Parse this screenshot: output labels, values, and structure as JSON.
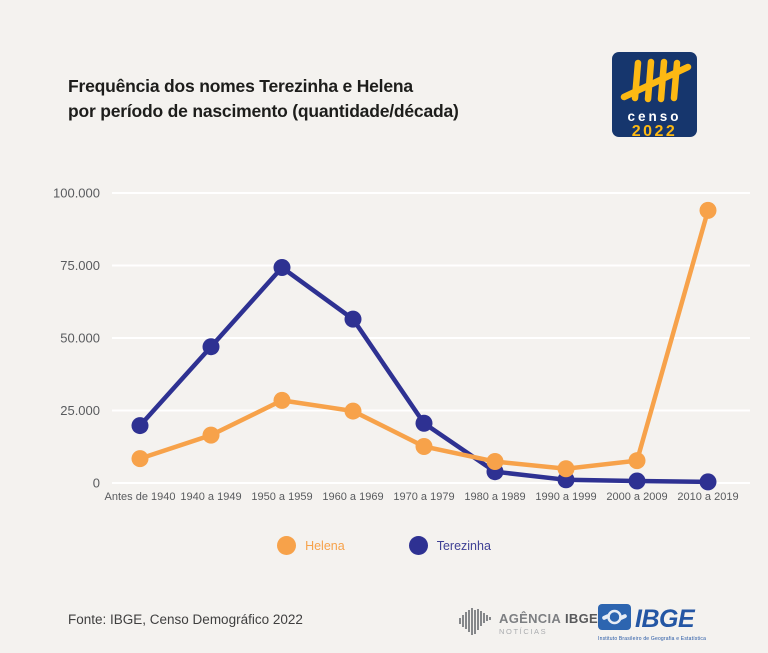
{
  "page": {
    "background": "#f4f2ef"
  },
  "header": {
    "title_line1": "Frequência dos nomes Terezinha e Helena",
    "title_line2": "por período de nascimento (quantidade/década)",
    "censo_logo": {
      "word": "censo",
      "year": "2022",
      "bg_color": "#16366d",
      "mark_color": "#fdb913"
    }
  },
  "chart_data": {
    "type": "line",
    "title": "Frequência dos nomes Terezinha e Helena por período de nascimento (quantidade/década)",
    "categories": [
      "Antes de 1940",
      "1940 a 1949",
      "1950 a 1959",
      "1960 a 1969",
      "1970 a 1979",
      "1980 a 1989",
      "1990 a 1999",
      "2000 a 2009",
      "2010 a 2019"
    ],
    "series": [
      {
        "name": "Terezinha",
        "color": "#2e3192",
        "values": [
          19800,
          47000,
          74300,
          56500,
          20600,
          3900,
          1100,
          700,
          400
        ]
      },
      {
        "name": "Helena",
        "color": "#f7a24a",
        "values": [
          8400,
          16500,
          28500,
          24800,
          12600,
          7400,
          4900,
          7700,
          94000
        ]
      }
    ],
    "ylim": [
      0,
      100000
    ],
    "yticks": [
      {
        "value": 100000,
        "label": "100.000"
      },
      {
        "value": 75000,
        "label": "75.000"
      },
      {
        "value": 50000,
        "label": "50.000"
      },
      {
        "value": 25000,
        "label": "25.000"
      },
      {
        "value": 0,
        "label": "0"
      }
    ],
    "grid": true,
    "gridline_color": "#ffffff",
    "tick_label_color": "#595b5e",
    "legend_position": "bottom"
  },
  "legend": {
    "items": [
      {
        "label": "Helena",
        "color": "#f7a24a",
        "label_color": "#f7a24a"
      },
      {
        "label": "Terezinha",
        "color": "#2e3192",
        "label_color": "#3f4195"
      }
    ]
  },
  "footer": {
    "source": "Fonte: IBGE, Censo Demográfico 2022",
    "agencia_logo": {
      "word1": "AGÊNCIA",
      "word2": "IBGE",
      "line2": "NOTÍCIAS"
    },
    "ibge_logo": {
      "text": "IBGE",
      "caption": "Instituto Brasileiro de Geografia e Estatística",
      "brand_color": "#2456a4"
    }
  }
}
